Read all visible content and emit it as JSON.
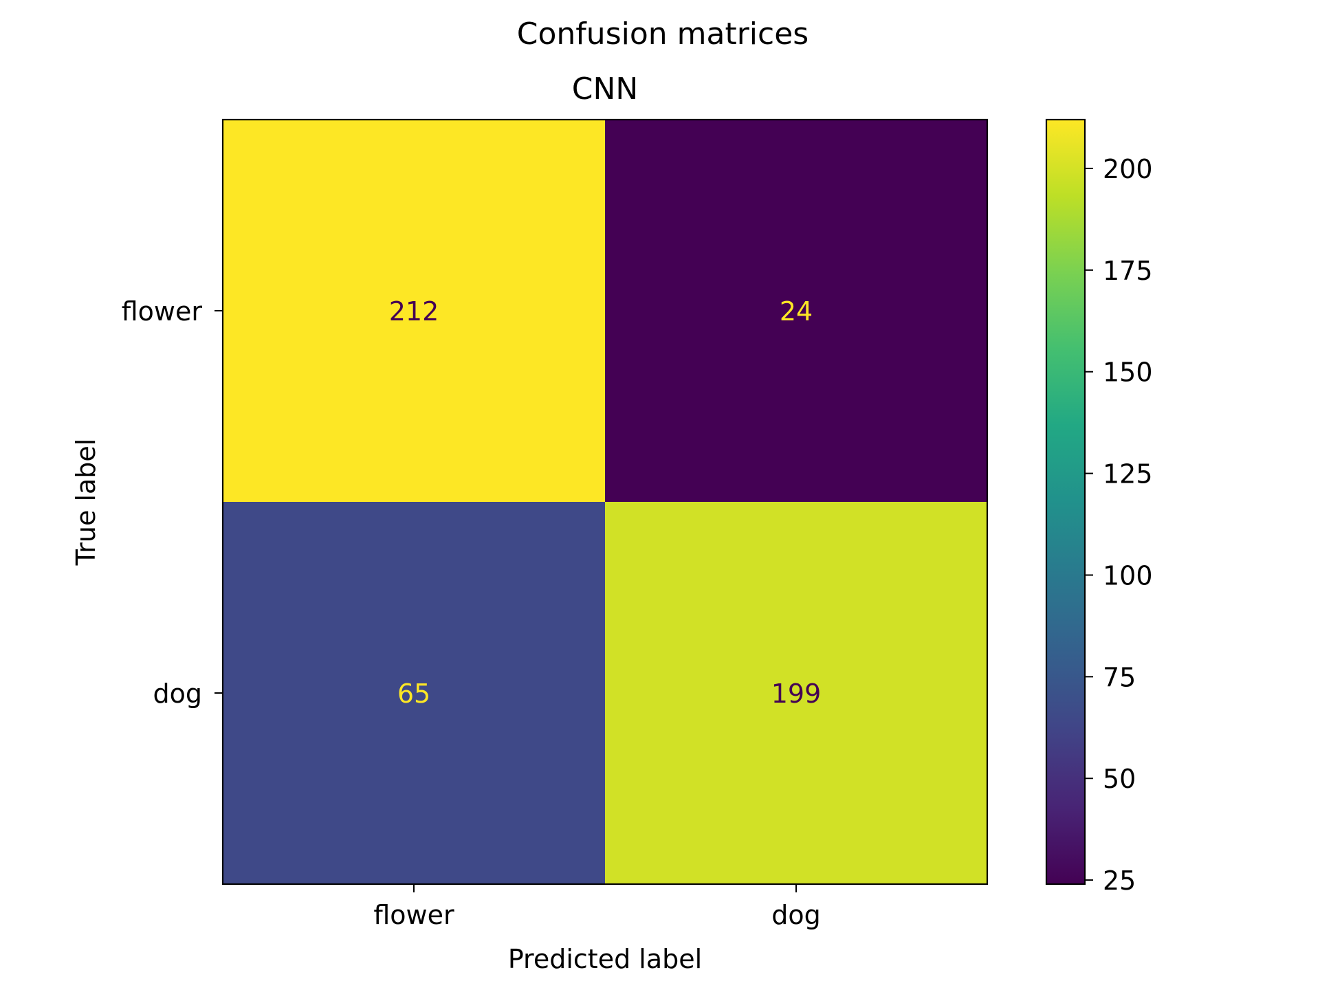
{
  "chart_data": {
    "type": "heatmap",
    "suptitle": "Confusion matrices",
    "title": "CNN",
    "xlabel": "Predicted label",
    "ylabel": "True label",
    "x_categories": [
      "flower",
      "dog"
    ],
    "y_categories": [
      "flower",
      "dog"
    ],
    "values": [
      [
        212,
        24
      ],
      [
        65,
        199
      ]
    ],
    "colormap": "viridis",
    "colorbar": {
      "ticks": [
        25,
        50,
        75,
        100,
        125,
        150,
        175,
        200
      ],
      "tick_labels": [
        "25",
        "50",
        "75",
        "100",
        "125",
        "150",
        "175",
        "200"
      ],
      "range": [
        24,
        212
      ]
    },
    "text_color_on_light": "#440154",
    "text_color_on_dark": "#fde725",
    "grid": false
  }
}
